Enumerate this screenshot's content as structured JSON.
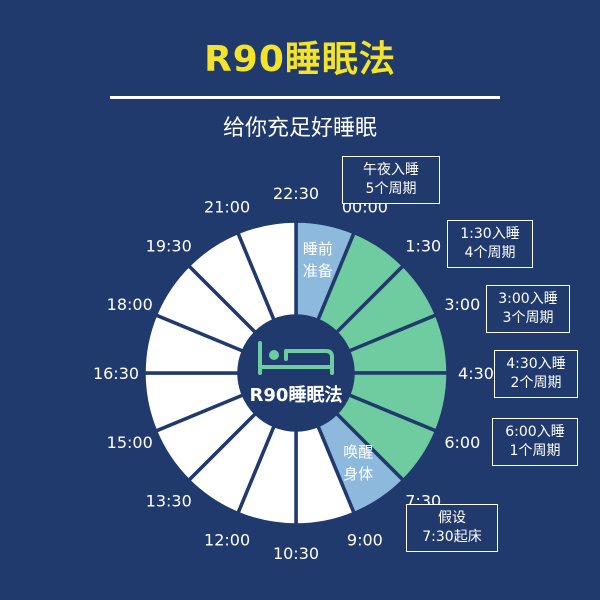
{
  "header": {
    "title": "R90睡眠法",
    "subtitle": "给你充足好睡眠"
  },
  "center": {
    "label": "R90睡眠法",
    "icon": "bed-icon"
  },
  "clock": {
    "segment_count": 16,
    "times": [
      "22:30",
      "00:00",
      "1:30",
      "3:00",
      "4:30",
      "6:00",
      "7:30",
      "9:00",
      "10:30",
      "12:00",
      "13:30",
      "15:00",
      "16:30",
      "18:00",
      "19:30",
      "21:00"
    ],
    "segment_colors": {
      "pre_sleep": "#8db9dc",
      "sleep": "#6fcba0",
      "wake": "#8db9dc",
      "day": "#ffffff",
      "divider": "#213a6e"
    },
    "segment_kinds": [
      "pre_sleep",
      "sleep",
      "sleep",
      "sleep",
      "sleep",
      "sleep",
      "wake",
      "day",
      "day",
      "day",
      "day",
      "day",
      "day",
      "day",
      "day",
      "day"
    ],
    "segment_labels": [
      {
        "index": 0,
        "lines": [
          "睡前",
          "准备"
        ]
      },
      {
        "index": 6,
        "lines": [
          "唤醒",
          "身体"
        ]
      }
    ]
  },
  "notes": [
    {
      "name": "note-midnight",
      "lines": [
        "午夜入睡",
        "5个周期"
      ]
    },
    {
      "name": "note-0130",
      "lines": [
        "1:30入睡",
        "4个周期"
      ]
    },
    {
      "name": "note-0300",
      "lines": [
        "3:00入睡",
        "3个周期"
      ]
    },
    {
      "name": "note-0430",
      "lines": [
        "4:30入睡",
        "2个周期"
      ]
    },
    {
      "name": "note-0600",
      "lines": [
        "6:00入睡",
        "1个周期"
      ]
    },
    {
      "name": "note-hypothesis",
      "lines": [
        "假设",
        "7:30起床"
      ]
    }
  ]
}
